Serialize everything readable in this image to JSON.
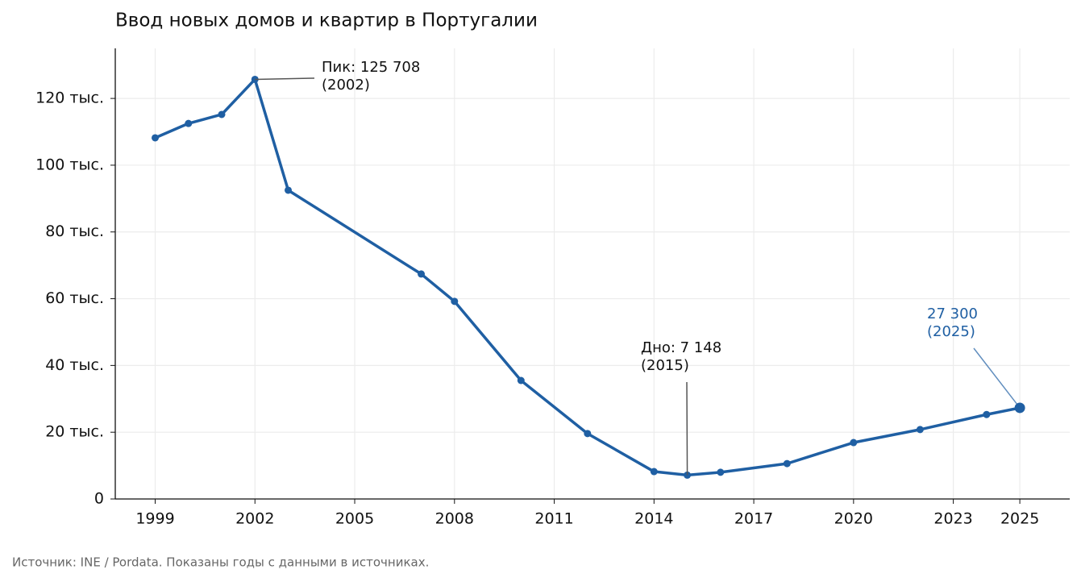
{
  "chart_data": {
    "type": "line",
    "title": "Ввод новых домов и квартир в Португалии",
    "x": [
      1999,
      2000,
      2001,
      2002,
      2003,
      2007,
      2008,
      2010,
      2012,
      2014,
      2015,
      2016,
      2018,
      2020,
      2022,
      2024,
      2025
    ],
    "values": [
      108.2,
      112.5,
      115.2,
      125.708,
      92.5,
      67.4,
      59.2,
      35.5,
      19.6,
      8.2,
      7.148,
      8.0,
      10.6,
      16.9,
      20.8,
      25.3,
      27.3
    ],
    "color": "#1f5fa3",
    "xlim": [
      1997.8,
      2026.5
    ],
    "xticks": [
      1999,
      2002,
      2005,
      2008,
      2011,
      2014,
      2017,
      2020,
      2023,
      2025
    ],
    "ylim": [
      0,
      135
    ],
    "yticks": [
      {
        "value": 0,
        "label": "0"
      },
      {
        "value": 20,
        "label": "20 тыс."
      },
      {
        "value": 40,
        "label": "40 тыс."
      },
      {
        "value": 60,
        "label": "60 тыс."
      },
      {
        "value": 80,
        "label": "80 тыс."
      },
      {
        "value": 100,
        "label": "100 тыс."
      },
      {
        "value": 120,
        "label": "120 тыс."
      }
    ],
    "grid": true,
    "annotations": [
      {
        "lines": [
          "Пик: 125 708",
          "(2002)"
        ]
      },
      {
        "lines": [
          "Дно: 7 148",
          "(2015)"
        ]
      },
      {
        "lines": [
          "27 300",
          "(2025)"
        ]
      }
    ],
    "source": "Источник: INE / Pordata. Показаны годы с данными в источниках."
  }
}
